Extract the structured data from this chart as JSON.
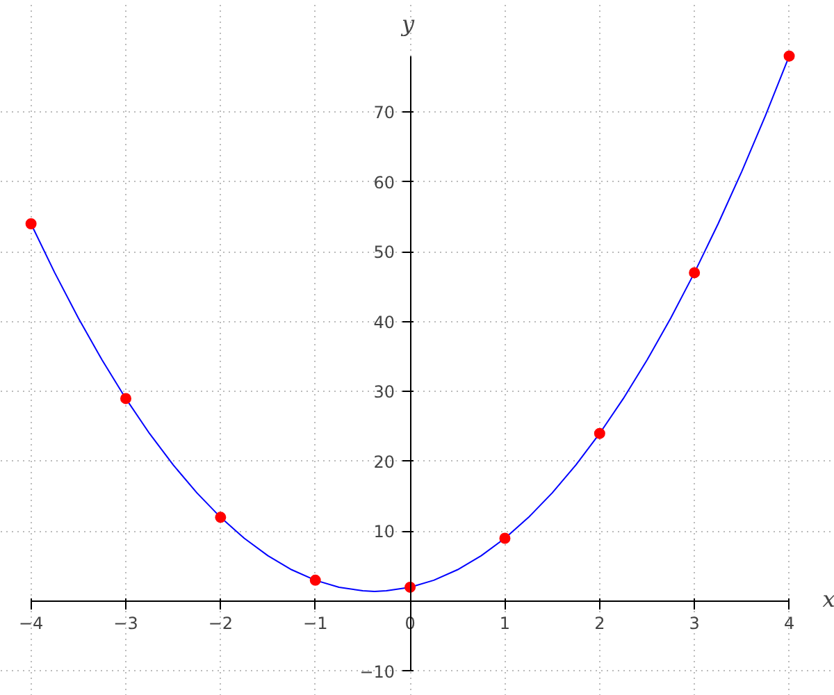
{
  "chart_data": {
    "type": "line",
    "xlabel": "x",
    "ylabel": "y",
    "xlim": [
      -4,
      4
    ],
    "ylim": [
      -10,
      78
    ],
    "xticks": [
      -4,
      -3,
      -2,
      -1,
      0,
      1,
      2,
      3,
      4
    ],
    "yticks": [
      -10,
      10,
      20,
      30,
      40,
      50,
      60,
      70
    ],
    "grid": true,
    "series": [
      {
        "color": "#0000ff",
        "marker": "none",
        "x": [
          -4,
          -3.75,
          -3.5,
          -3.25,
          -3,
          -2.75,
          -2.5,
          -2.25,
          -2,
          -1.75,
          -1.5,
          -1.25,
          -1,
          -0.75,
          -0.5,
          -0.375,
          -0.25,
          0,
          0.25,
          0.5,
          0.75,
          1,
          1.25,
          1.5,
          1.75,
          2,
          2.25,
          2.5,
          2.75,
          3,
          3.25,
          3.5,
          3.75,
          4
        ],
        "values": [
          54,
          47,
          40.5,
          34.5,
          29,
          24,
          19.5,
          15.5,
          12,
          9,
          6.5,
          4.5,
          3,
          2,
          1.5,
          1.4,
          1.5,
          2,
          3,
          4.5,
          6.5,
          9,
          12,
          15.5,
          19.5,
          24,
          29,
          34.5,
          40.5,
          47,
          54,
          61.5,
          69.5,
          78
        ]
      },
      {
        "type": "scatter",
        "color": "#ff0000",
        "marker": "circle",
        "x": [
          -4,
          -3,
          -2,
          -1,
          0,
          1,
          2,
          3,
          4
        ],
        "values": [
          54,
          29,
          12,
          3,
          2,
          9,
          24,
          47,
          78
        ]
      }
    ]
  }
}
